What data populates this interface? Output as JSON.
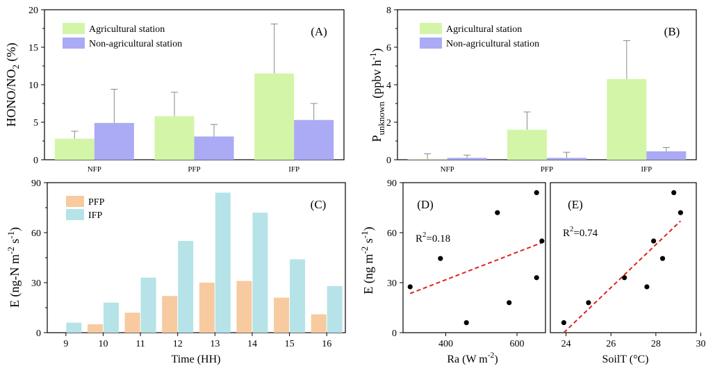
{
  "chart_data": [
    {
      "id": "A",
      "type": "bar",
      "panel_label": "(A)",
      "ylabel_parts": [
        "HONO/NO",
        "2",
        " (%)"
      ],
      "xlabel": "",
      "categories": [
        "NFP",
        "PFP",
        "IFP"
      ],
      "ylim": [
        0,
        20
      ],
      "yticks": [
        "0",
        "5",
        "10",
        "15",
        "20"
      ],
      "series": [
        {
          "name": "Agricultural station",
          "color": "#d3f5a8",
          "values": [
            2.8,
            5.8,
            11.5
          ],
          "errors": [
            1.0,
            3.2,
            6.6
          ]
        },
        {
          "name": "Non-agricultural station",
          "color": "#aaaaf5",
          "values": [
            4.9,
            3.1,
            5.3
          ],
          "errors": [
            4.5,
            1.6,
            2.2
          ]
        }
      ],
      "legend": "top-left"
    },
    {
      "id": "B",
      "type": "bar",
      "panel_label": "(B)",
      "ylabel_parts": [
        "P",
        "unknown",
        " (ppbv h",
        "-1",
        ")"
      ],
      "xlabel": "",
      "categories": [
        "NFP",
        "PFP",
        "IFP"
      ],
      "ylim": [
        0,
        8
      ],
      "yticks": [
        "0",
        "2",
        "4",
        "6",
        "8"
      ],
      "series": [
        {
          "name": "Agricultural station",
          "color": "#d3f5a8",
          "values": [
            0.02,
            1.6,
            4.3
          ],
          "errors": [
            0.3,
            0.95,
            2.05
          ]
        },
        {
          "name": "Non-agricultural station",
          "color": "#aaaaf5",
          "values": [
            0.1,
            0.1,
            0.45
          ],
          "errors": [
            0.15,
            0.3,
            0.2
          ]
        }
      ],
      "legend": "top-left"
    },
    {
      "id": "C",
      "type": "bar",
      "panel_label": "(C)",
      "ylabel_parts": [
        "E (ng-N m",
        "-2",
        " s",
        "-1",
        ")"
      ],
      "xlabel": "Time (HH)",
      "categories": [
        "9",
        "10",
        "11",
        "12",
        "13",
        "14",
        "15",
        "16"
      ],
      "ylim": [
        0,
        90
      ],
      "yticks": [
        "0",
        "30",
        "60",
        "90"
      ],
      "series": [
        {
          "name": "PFP",
          "color": "#f8caa0",
          "values": [
            0,
            5,
            12,
            22,
            30,
            31,
            21,
            11
          ]
        },
        {
          "name": "IFP",
          "color": "#b5e3e8",
          "values": [
            6,
            18,
            33,
            55,
            84,
            72,
            44,
            28
          ]
        }
      ],
      "legend": "top-left"
    },
    {
      "id": "D",
      "type": "scatter",
      "panel_label": "(D)",
      "ylabel_parts": [
        "E (ng m",
        "-2",
        " s",
        "-1",
        ")"
      ],
      "xlabel_parts": [
        "Ra (W m",
        "-2",
        ")"
      ],
      "r2_parts": [
        "R",
        "2",
        "=0.18"
      ],
      "xlim": [
        280,
        680
      ],
      "ylim": [
        0,
        90
      ],
      "xticks": [
        "400",
        "600"
      ],
      "yticks": [
        "0",
        "30",
        "60",
        "90"
      ],
      "points": [
        [
          300,
          27.5
        ],
        [
          385,
          44.5
        ],
        [
          458,
          6
        ],
        [
          545,
          72
        ],
        [
          578,
          18
        ],
        [
          655,
          84
        ],
        [
          655,
          33
        ],
        [
          670,
          55
        ]
      ],
      "fit_line": [
        [
          300,
          23.5
        ],
        [
          670,
          54
        ]
      ]
    },
    {
      "id": "E",
      "type": "scatter",
      "panel_label": "(E)",
      "xlabel": "SoilT (°C)",
      "r2_parts": [
        "R",
        "2",
        "=0.74"
      ],
      "xlim": [
        23.3,
        29.8
      ],
      "ylim": [
        0,
        90
      ],
      "xticks": [
        "24",
        "26",
        "28",
        "30"
      ],
      "points": [
        [
          23.9,
          6
        ],
        [
          25.0,
          18
        ],
        [
          26.6,
          33
        ],
        [
          27.6,
          27.5
        ],
        [
          27.9,
          55
        ],
        [
          28.3,
          44.5
        ],
        [
          28.8,
          84
        ],
        [
          29.1,
          72
        ]
      ],
      "fit_line": [
        [
          23.9,
          0
        ],
        [
          29.1,
          67
        ]
      ]
    }
  ]
}
